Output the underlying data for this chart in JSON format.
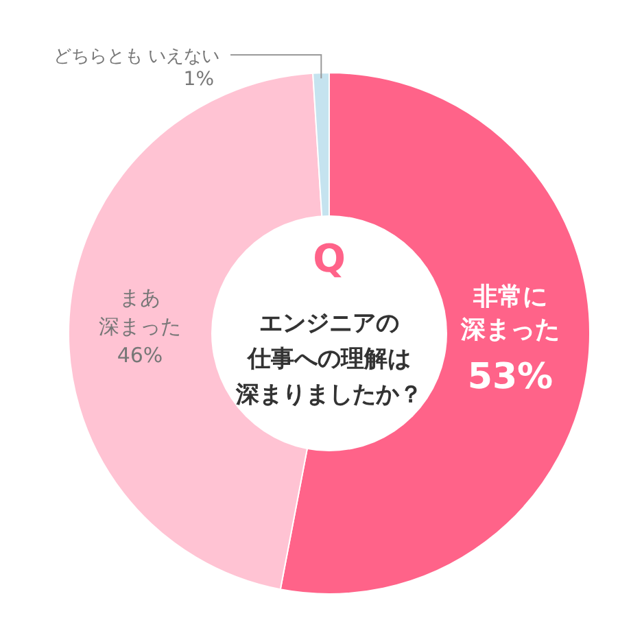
{
  "chart_data": {
    "type": "donut",
    "title": "Q",
    "subtitle": "エンジニアの仕事への理解は深まりましたか？",
    "categories": [
      "非常に深まった",
      "まあ深まった",
      "どちらともいえない"
    ],
    "values": [
      53,
      46,
      1
    ],
    "value_labels": [
      "53%",
      "46%",
      "1%"
    ],
    "colors": [
      "#ff6389",
      "#ffc3d3",
      "#c5e3ef"
    ]
  }
}
